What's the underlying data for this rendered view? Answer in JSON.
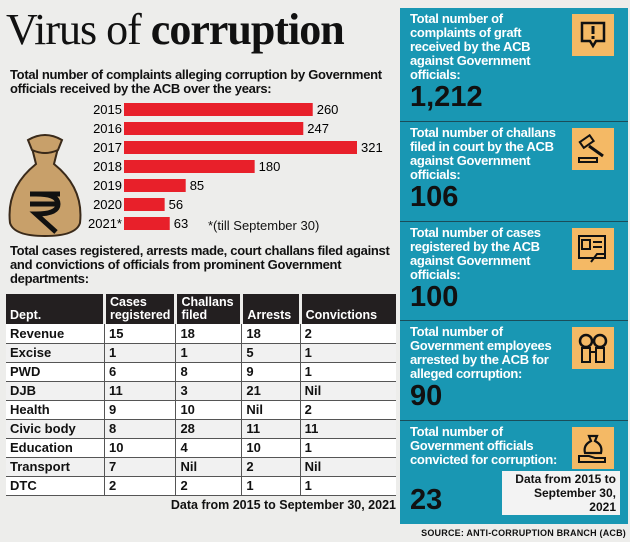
{
  "title": {
    "part1": "Virus of ",
    "part2": "corruption"
  },
  "chart_data": {
    "type": "bar",
    "orientation": "horizontal",
    "title": "Total number of complaints alleging corruption by Government officials received by the ACB over the years:",
    "categories": [
      "2015",
      "2016",
      "2017",
      "2018",
      "2019",
      "2020",
      "2021*"
    ],
    "values": [
      260,
      247,
      321,
      180,
      85,
      56,
      63
    ],
    "bar_color": "#e8202a",
    "note": "*(till September 30)",
    "xlim": [
      0,
      321
    ]
  },
  "table": {
    "title": "Total cases registered, arrests made, court challans filed against and convictions of officials from prominent Government departments:",
    "headers": [
      "Dept.",
      "Cases registered",
      "Challans filed",
      "Arrests",
      "Convictions"
    ],
    "rows": [
      [
        "Revenue",
        "15",
        "18",
        "18",
        "2"
      ],
      [
        "Excise",
        "1",
        "1",
        "5",
        "1"
      ],
      [
        "PWD",
        "6",
        "8",
        "9",
        "1"
      ],
      [
        "DJB",
        "11",
        "3",
        "21",
        "Nil"
      ],
      [
        "Health",
        "9",
        "10",
        "Nil",
        "2"
      ],
      [
        "Civic body",
        "8",
        "28",
        "11",
        "11"
      ],
      [
        "Education",
        "10",
        "4",
        "10",
        "1"
      ],
      [
        "Transport",
        "7",
        "Nil",
        "2",
        "Nil"
      ],
      [
        "DTC",
        "2",
        "2",
        "1",
        "1"
      ]
    ],
    "footnote": "Data from 2015 to September 30, 2021"
  },
  "panel": {
    "stats": [
      {
        "label": "Total number of complaints of graft received by the ACB against Government officials:",
        "value": "1,212",
        "icon": "complaint-bubble-icon"
      },
      {
        "label": "Total number of challans filed in court by the ACB against Government officials:",
        "value": "106",
        "icon": "gavel-icon"
      },
      {
        "label": "Total number of cases registered by the ACB against Government officials:",
        "value": "100",
        "icon": "document-icon"
      },
      {
        "label": "Total number of Government employees arrested by the ACB for alleged corruption:",
        "value": "90",
        "icon": "handcuffs-icon"
      },
      {
        "label": "Total number of Government officials convicted for corruption:",
        "value": "23",
        "icon": "bribe-hand-icon"
      }
    ],
    "footnote": "Data from 2015 to September 30, 2021"
  },
  "source": "SOURCE: ANTI-CORRUPTION BRANCH (ACB)",
  "colors": {
    "panel": "#1997b3",
    "icon_bg": "#f4b965",
    "bar": "#e8202a"
  }
}
